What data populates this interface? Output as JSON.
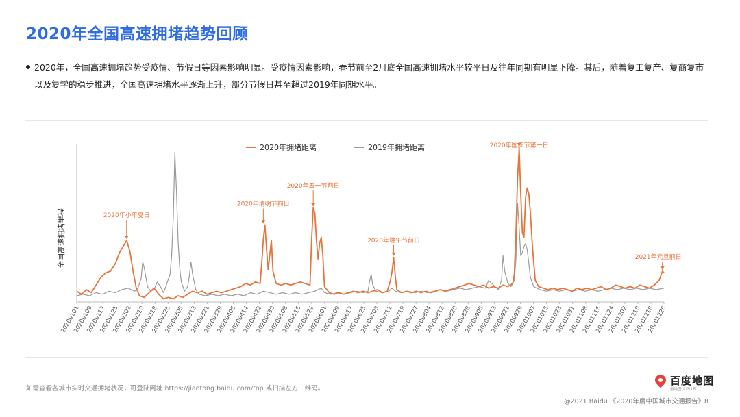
{
  "page": {
    "title": "2020年全国高速拥堵趋势回顾",
    "bullet": "2020年，全国高速拥堵趋势受疫情、节假日等因素影响明显。受疫情因素影响，春节前至2月底全国高速拥堵水平较平日及往年同期有明显下降。其后，随着复工复产、复商复市以及复学的稳步推进，全国高速拥堵水平逐渐上升，部分节假日甚至超过2019年同期水平。",
    "footnote": "如需查看各城市实时交通拥堵状况，可登陆网址 https://jiaotong.baidu.com/top 或扫描左方二维码。",
    "logo_text": "百度地图",
    "logo_subtext": "用地图认识世界",
    "copyright": "@2021 Baidu 《2020年度中国城市交通报告》8"
  },
  "colors": {
    "title": "#2f6de0",
    "series_2020": "#e8743b",
    "series_2019": "#9a9a9a",
    "annotation": "#e8743b",
    "axis": "#999999"
  },
  "chart_data": {
    "type": "line",
    "title": "",
    "xlabel": "",
    "ylabel": "全国高速拥堵里程",
    "y_ticks_shown": false,
    "grid": false,
    "legend_position": "top",
    "x_tick_labels": [
      "20200101",
      "20200109",
      "20200117",
      "20200125",
      "20200202",
      "20200210",
      "20200218",
      "20200226",
      "20200305",
      "20200313",
      "20200321",
      "20200329",
      "20200406",
      "20200414",
      "20200422",
      "20200430",
      "20200508",
      "20200516",
      "20200524",
      "20200601",
      "20200609",
      "20200617",
      "20200625",
      "20200703",
      "20200711",
      "20200719",
      "20200727",
      "20200804",
      "20200812",
      "20200820",
      "20200828",
      "20200905",
      "20200913",
      "20200921",
      "20200929",
      "20201007",
      "20201015",
      "20201023",
      "20201031",
      "20201108",
      "20201116",
      "20201124",
      "20201202",
      "20201210",
      "20201218",
      "20201226"
    ],
    "x_range": [
      0,
      365
    ],
    "y_range": [
      0,
      100
    ],
    "series": [
      {
        "name": "2020年拥堵距离",
        "color": "#e8743b",
        "points": [
          [
            0,
            7
          ],
          [
            3,
            5
          ],
          [
            6,
            8
          ],
          [
            9,
            6
          ],
          [
            12,
            11
          ],
          [
            15,
            16
          ],
          [
            18,
            19
          ],
          [
            21,
            20
          ],
          [
            24,
            25
          ],
          [
            27,
            33
          ],
          [
            30,
            38
          ],
          [
            31,
            40
          ],
          [
            33,
            33
          ],
          [
            35,
            20
          ],
          [
            37,
            9
          ],
          [
            39,
            4
          ],
          [
            42,
            3
          ],
          [
            45,
            6
          ],
          [
            48,
            9
          ],
          [
            51,
            5
          ],
          [
            54,
            2
          ],
          [
            57,
            3
          ],
          [
            60,
            2
          ],
          [
            63,
            4
          ],
          [
            66,
            3
          ],
          [
            69,
            5
          ],
          [
            72,
            7
          ],
          [
            75,
            6
          ],
          [
            78,
            7
          ],
          [
            81,
            5
          ],
          [
            84,
            6
          ],
          [
            87,
            7
          ],
          [
            90,
            6
          ],
          [
            93,
            7
          ],
          [
            96,
            8
          ],
          [
            99,
            9
          ],
          [
            102,
            10
          ],
          [
            105,
            12
          ],
          [
            108,
            11
          ],
          [
            111,
            13
          ],
          [
            114,
            12
          ],
          [
            115,
            25
          ],
          [
            116,
            41
          ],
          [
            117,
            50
          ],
          [
            118,
            34
          ],
          [
            119,
            21
          ],
          [
            121,
            40
          ],
          [
            122,
            20
          ],
          [
            124,
            12
          ],
          [
            127,
            11
          ],
          [
            130,
            12
          ],
          [
            133,
            11
          ],
          [
            136,
            12
          ],
          [
            139,
            13
          ],
          [
            142,
            12
          ],
          [
            145,
            11
          ],
          [
            146,
            40
          ],
          [
            147,
            61
          ],
          [
            148,
            58
          ],
          [
            149,
            40
          ],
          [
            150,
            28
          ],
          [
            151,
            38
          ],
          [
            152,
            42
          ],
          [
            153,
            30
          ],
          [
            154,
            10
          ],
          [
            157,
            6
          ],
          [
            160,
            5
          ],
          [
            163,
            6
          ],
          [
            166,
            5
          ],
          [
            169,
            6
          ],
          [
            172,
            7
          ],
          [
            175,
            6
          ],
          [
            178,
            7
          ],
          [
            181,
            6
          ],
          [
            184,
            7
          ],
          [
            187,
            8
          ],
          [
            190,
            6
          ],
          [
            193,
            7
          ],
          [
            195,
            14
          ],
          [
            196,
            20
          ],
          [
            197,
            29
          ],
          [
            198,
            17
          ],
          [
            199,
            8
          ],
          [
            202,
            6
          ],
          [
            205,
            7
          ],
          [
            208,
            6
          ],
          [
            211,
            7
          ],
          [
            214,
            6
          ],
          [
            217,
            7
          ],
          [
            220,
            6
          ],
          [
            223,
            7
          ],
          [
            226,
            8
          ],
          [
            229,
            7
          ],
          [
            232,
            8
          ],
          [
            235,
            9
          ],
          [
            238,
            10
          ],
          [
            241,
            11
          ],
          [
            244,
            12
          ],
          [
            247,
            11
          ],
          [
            250,
            10
          ],
          [
            253,
            11
          ],
          [
            256,
            9
          ],
          [
            259,
            10
          ],
          [
            262,
            9
          ],
          [
            265,
            11
          ],
          [
            268,
            10
          ],
          [
            271,
            12
          ],
          [
            272,
            18
          ],
          [
            273,
            45
          ],
          [
            274,
            80
          ],
          [
            275,
            100
          ],
          [
            276,
            70
          ],
          [
            277,
            45
          ],
          [
            278,
            42
          ],
          [
            279,
            68
          ],
          [
            280,
            74
          ],
          [
            281,
            70
          ],
          [
            282,
            58
          ],
          [
            283,
            40
          ],
          [
            284,
            26
          ],
          [
            285,
            14
          ],
          [
            287,
            10
          ],
          [
            290,
            9
          ],
          [
            293,
            8
          ],
          [
            296,
            9
          ],
          [
            299,
            8
          ],
          [
            302,
            9
          ],
          [
            305,
            8
          ],
          [
            308,
            7
          ],
          [
            311,
            9
          ],
          [
            314,
            8
          ],
          [
            317,
            9
          ],
          [
            320,
            8
          ],
          [
            323,
            9
          ],
          [
            326,
            10
          ],
          [
            329,
            8
          ],
          [
            332,
            9
          ],
          [
            335,
            11
          ],
          [
            338,
            10
          ],
          [
            341,
            9
          ],
          [
            344,
            10
          ],
          [
            347,
            9
          ],
          [
            350,
            11
          ],
          [
            353,
            10
          ],
          [
            356,
            9
          ],
          [
            359,
            11
          ],
          [
            362,
            14
          ],
          [
            364,
            20
          ],
          [
            365,
            19
          ]
        ]
      },
      {
        "name": "2019年拥堵距离",
        "color": "#9a9a9a",
        "points": [
          [
            0,
            4
          ],
          [
            4,
            5
          ],
          [
            8,
            4
          ],
          [
            12,
            6
          ],
          [
            16,
            5
          ],
          [
            20,
            7
          ],
          [
            24,
            6
          ],
          [
            28,
            8
          ],
          [
            32,
            9
          ],
          [
            36,
            7
          ],
          [
            38,
            9
          ],
          [
            40,
            15
          ],
          [
            41,
            26
          ],
          [
            42,
            22
          ],
          [
            44,
            10
          ],
          [
            46,
            7
          ],
          [
            48,
            8
          ],
          [
            50,
            13
          ],
          [
            52,
            10
          ],
          [
            54,
            6
          ],
          [
            56,
            12
          ],
          [
            58,
            18
          ],
          [
            59,
            30
          ],
          [
            60,
            55
          ],
          [
            61,
            97
          ],
          [
            62,
            72
          ],
          [
            63,
            40
          ],
          [
            64,
            22
          ],
          [
            65,
            13
          ],
          [
            67,
            7
          ],
          [
            69,
            10
          ],
          [
            70,
            17
          ],
          [
            71,
            26
          ],
          [
            72,
            18
          ],
          [
            74,
            8
          ],
          [
            76,
            5
          ],
          [
            80,
            4
          ],
          [
            84,
            5
          ],
          [
            88,
            4
          ],
          [
            92,
            5
          ],
          [
            96,
            4
          ],
          [
            100,
            5
          ],
          [
            104,
            4
          ],
          [
            108,
            6
          ],
          [
            112,
            5
          ],
          [
            116,
            7
          ],
          [
            120,
            6
          ],
          [
            124,
            5
          ],
          [
            128,
            6
          ],
          [
            132,
            5
          ],
          [
            136,
            6
          ],
          [
            140,
            5
          ],
          [
            144,
            6
          ],
          [
            148,
            7
          ],
          [
            150,
            8
          ],
          [
            152,
            9
          ],
          [
            154,
            6
          ],
          [
            158,
            5
          ],
          [
            162,
            6
          ],
          [
            166,
            5
          ],
          [
            170,
            6
          ],
          [
            174,
            7
          ],
          [
            178,
            6
          ],
          [
            181,
            7
          ],
          [
            182,
            13
          ],
          [
            183,
            18
          ],
          [
            184,
            11
          ],
          [
            186,
            7
          ],
          [
            190,
            6
          ],
          [
            194,
            7
          ],
          [
            196,
            9
          ],
          [
            198,
            7
          ],
          [
            202,
            6
          ],
          [
            206,
            7
          ],
          [
            210,
            6
          ],
          [
            214,
            7
          ],
          [
            218,
            6
          ],
          [
            222,
            7
          ],
          [
            226,
            8
          ],
          [
            230,
            7
          ],
          [
            234,
            8
          ],
          [
            238,
            9
          ],
          [
            242,
            8
          ],
          [
            246,
            9
          ],
          [
            250,
            10
          ],
          [
            254,
            9
          ],
          [
            256,
            14
          ],
          [
            258,
            12
          ],
          [
            260,
            10
          ],
          [
            262,
            8
          ],
          [
            264,
            14
          ],
          [
            265,
            30
          ],
          [
            266,
            20
          ],
          [
            268,
            12
          ],
          [
            270,
            10
          ],
          [
            272,
            14
          ],
          [
            273,
            28
          ],
          [
            274,
            64
          ],
          [
            275,
            48
          ],
          [
            276,
            30
          ],
          [
            277,
            32
          ],
          [
            278,
            36
          ],
          [
            279,
            38
          ],
          [
            280,
            34
          ],
          [
            281,
            25
          ],
          [
            282,
            16
          ],
          [
            284,
            10
          ],
          [
            288,
            8
          ],
          [
            292,
            7
          ],
          [
            296,
            8
          ],
          [
            300,
            7
          ],
          [
            304,
            8
          ],
          [
            308,
            7
          ],
          [
            312,
            8
          ],
          [
            316,
            7
          ],
          [
            320,
            8
          ],
          [
            324,
            7
          ],
          [
            328,
            8
          ],
          [
            332,
            9
          ],
          [
            336,
            8
          ],
          [
            340,
            9
          ],
          [
            344,
            8
          ],
          [
            348,
            9
          ],
          [
            352,
            8
          ],
          [
            356,
            9
          ],
          [
            360,
            8
          ],
          [
            365,
            9
          ]
        ]
      }
    ],
    "annotations": [
      {
        "label": "2020年小年夏日",
        "x": 31,
        "y": 40
      },
      {
        "label": "2020年清明节前日",
        "x": 116,
        "y": 50
      },
      {
        "label": "2020年五一节前日",
        "x": 147,
        "y": 61
      },
      {
        "label": "2020年端午节前日",
        "x": 197,
        "y": 29
      },
      {
        "label": "2020年国庆节第一日",
        "x": 275,
        "y": 100
      },
      {
        "label": "2021年元旦前日",
        "x": 364,
        "y": 20
      }
    ]
  }
}
